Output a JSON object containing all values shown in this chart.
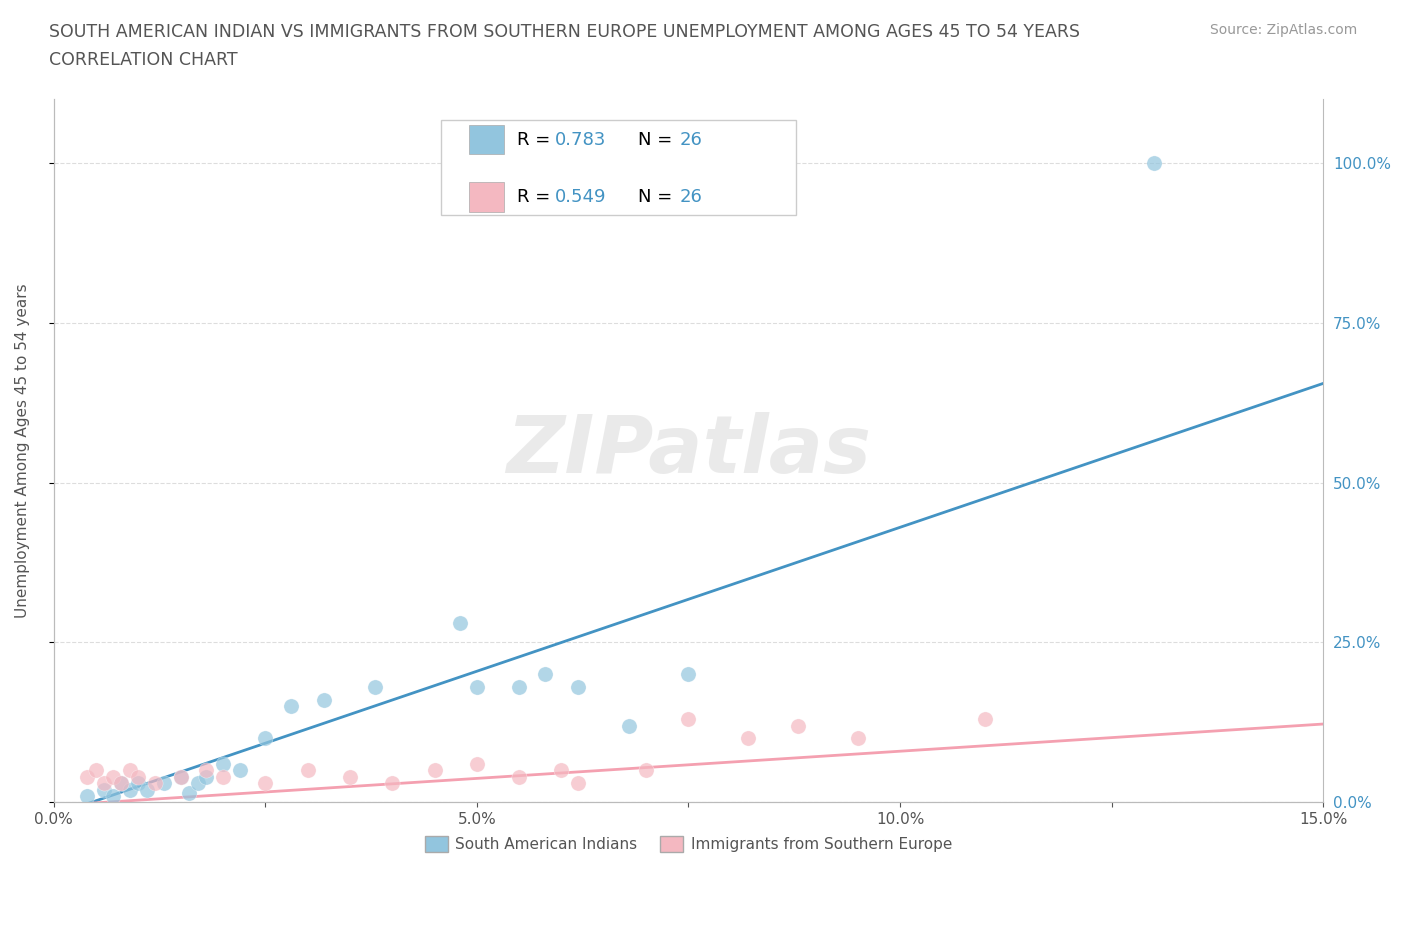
{
  "title_line1": "SOUTH AMERICAN INDIAN VS IMMIGRANTS FROM SOUTHERN EUROPE UNEMPLOYMENT AMONG AGES 45 TO 54 YEARS",
  "title_line2": "CORRELATION CHART",
  "source": "Source: ZipAtlas.com",
  "ylabel": "Unemployment Among Ages 45 to 54 years",
  "xlim": [
    0.0,
    0.15
  ],
  "ylim": [
    0.0,
    1.1
  ],
  "xticks": [
    0.0,
    0.025,
    0.05,
    0.075,
    0.1,
    0.125,
    0.15
  ],
  "xticklabels": [
    "0.0%",
    "",
    "5.0%",
    "",
    "10.0%",
    "",
    "15.0%"
  ],
  "ytick_positions": [
    0.0,
    0.25,
    0.5,
    0.75,
    1.0
  ],
  "right_yticklabels": [
    "0.0%",
    "25.0%",
    "50.0%",
    "75.0%",
    "100.0%"
  ],
  "blue_scatter_color": "#92c5de",
  "pink_scatter_color": "#f4b8c1",
  "blue_line_color": "#4393c3",
  "pink_line_color": "#f4a0b0",
  "legend_blue_color": "#92c5de",
  "legend_pink_color": "#f4b8c1",
  "R_blue": 0.783,
  "R_pink": 0.549,
  "N_blue": 26,
  "N_pink": 26,
  "watermark_text": "ZIPatlas",
  "blue_line_slope": 4.5,
  "blue_line_intercept": -0.02,
  "pink_line_slope": 0.85,
  "pink_line_intercept": -0.005,
  "blue_scatter_x": [
    0.004,
    0.006,
    0.007,
    0.008,
    0.009,
    0.01,
    0.011,
    0.013,
    0.015,
    0.016,
    0.017,
    0.018,
    0.02,
    0.022,
    0.025,
    0.028,
    0.032,
    0.038,
    0.048,
    0.05,
    0.055,
    0.058,
    0.062,
    0.068,
    0.075,
    0.13
  ],
  "blue_scatter_y": [
    0.01,
    0.02,
    0.01,
    0.03,
    0.02,
    0.03,
    0.02,
    0.03,
    0.04,
    0.015,
    0.03,
    0.04,
    0.06,
    0.05,
    0.1,
    0.15,
    0.16,
    0.18,
    0.28,
    0.18,
    0.18,
    0.2,
    0.18,
    0.12,
    0.2,
    1.0
  ],
  "pink_scatter_x": [
    0.004,
    0.005,
    0.006,
    0.007,
    0.008,
    0.009,
    0.01,
    0.012,
    0.015,
    0.018,
    0.02,
    0.025,
    0.03,
    0.035,
    0.04,
    0.045,
    0.05,
    0.055,
    0.06,
    0.062,
    0.07,
    0.075,
    0.082,
    0.088,
    0.095,
    0.11
  ],
  "pink_scatter_y": [
    0.04,
    0.05,
    0.03,
    0.04,
    0.03,
    0.05,
    0.04,
    0.03,
    0.04,
    0.05,
    0.04,
    0.03,
    0.05,
    0.04,
    0.03,
    0.05,
    0.06,
    0.04,
    0.05,
    0.03,
    0.05,
    0.13,
    0.1,
    0.12,
    0.1,
    0.13
  ],
  "background_color": "#ffffff",
  "grid_color": "#dddddd",
  "title_color": "#555555",
  "axis_label_color": "#555555",
  "right_tick_color": "#4393c3",
  "bottom_legend_label_blue": "South American Indians",
  "bottom_legend_label_pink": "Immigrants from Southern Europe"
}
